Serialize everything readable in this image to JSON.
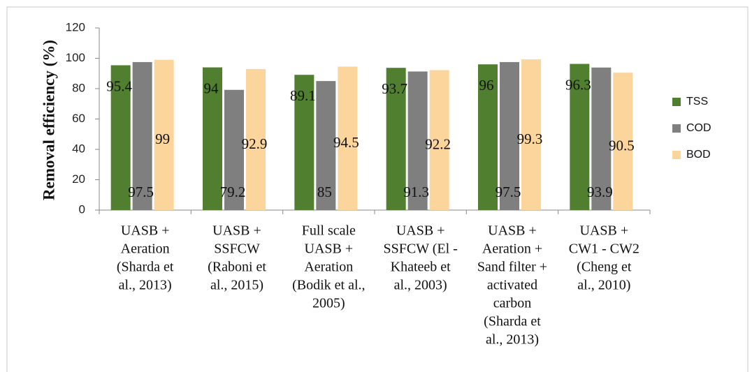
{
  "chart_data": {
    "type": "bar",
    "y_label": "Removal efficiency (%)",
    "categories": [
      [
        "UASB +",
        "Aeration",
        "(Sharda et",
        "al., 2013)"
      ],
      [
        "UASB +",
        "SSFCW",
        "(Raboni et",
        "al., 2015)"
      ],
      [
        "Full scale",
        "UASB +",
        "Aeration",
        "(Bodik et al.,",
        "2005)"
      ],
      [
        "UASB +",
        "SSFCW (El -",
        "Khateeb et",
        "al., 2003)"
      ],
      [
        "UASB +",
        "Aeration +",
        "Sand filter +",
        "activated",
        "carbon",
        "(Sharda et",
        "al., 2013)"
      ],
      [
        "UASB +",
        "CW1 - CW2",
        "(Cheng et",
        "al., 2010)"
      ]
    ],
    "series": [
      {
        "name": "TSS",
        "color": "#4f7f2f",
        "values": [
          95.4,
          94,
          89.1,
          93.7,
          96,
          96.3
        ]
      },
      {
        "name": "COD",
        "color": "#7f7f7f",
        "values": [
          97.5,
          79.2,
          85,
          91.3,
          97.5,
          93.9
        ]
      },
      {
        "name": "BOD",
        "color": "#fcd59c",
        "values": [
          99,
          92.9,
          94.5,
          92.2,
          99.3,
          90.5
        ]
      }
    ],
    "ylim": [
      0,
      120
    ],
    "yticks": [
      0,
      20,
      40,
      60,
      80,
      100,
      120
    ],
    "grid": false,
    "legend": "right"
  }
}
